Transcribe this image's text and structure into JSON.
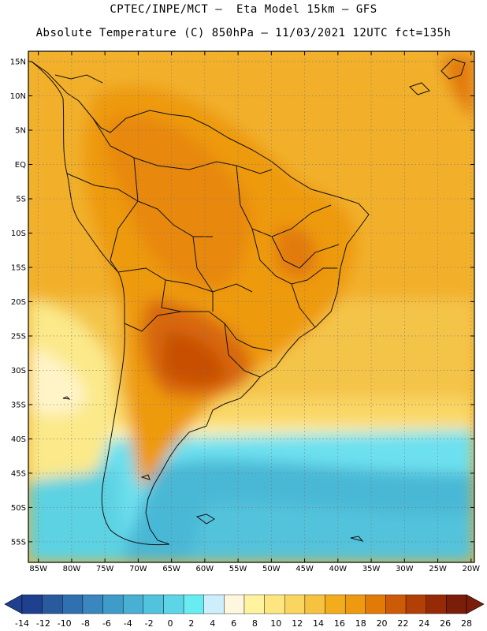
{
  "header": {
    "line1": "CPTEC/INPE/MCT –  Eta Model 15km – GFS",
    "line2": "Absolute Temperature (C) 850hPa – 11/03/2021 12UTC fct=135h"
  },
  "map": {
    "lat_labels": [
      "15N",
      "10N",
      "5N",
      "EQ",
      "5S",
      "10S",
      "15S",
      "20S",
      "25S",
      "30S",
      "35S",
      "40S",
      "45S",
      "50S",
      "55S"
    ],
    "lat_values": [
      15,
      10,
      5,
      0,
      -5,
      -10,
      -15,
      -20,
      -25,
      -30,
      -35,
      -40,
      -45,
      -50,
      -55
    ],
    "lon_labels": [
      "85W",
      "80W",
      "75W",
      "70W",
      "65W",
      "60W",
      "55W",
      "50W",
      "45W",
      "40W",
      "35W",
      "30W",
      "25W",
      "20W"
    ],
    "lon_values": [
      -85,
      -80,
      -75,
      -70,
      -65,
      -60,
      -55,
      -50,
      -45,
      -40,
      -35,
      -30,
      -25,
      -20
    ]
  },
  "colorbar": {
    "levels": [
      -14,
      -12,
      -10,
      -8,
      -6,
      -4,
      -2,
      0,
      2,
      4,
      6,
      8,
      10,
      12,
      14,
      16,
      18,
      20,
      22,
      24,
      26,
      28
    ],
    "labels": [
      "-14",
      "-12",
      "-10",
      "-8",
      "-6",
      "-4",
      "-2",
      "0",
      "2",
      "4",
      "6",
      "8",
      "10",
      "12",
      "14",
      "16",
      "18",
      "20",
      "22",
      "24",
      "26",
      "28"
    ],
    "colors": [
      "#1f3f8f",
      "#2a5a9e",
      "#3070b0",
      "#3a86be",
      "#3f9bc8",
      "#48b0d3",
      "#52c3dc",
      "#5cd6e6",
      "#68ecf2",
      "#cdeefa",
      "#fff6e0",
      "#fff3a0",
      "#fde680",
      "#fad660",
      "#f6c240",
      "#f2ad1c",
      "#ee9a10",
      "#e27a08",
      "#cc5a06",
      "#b24006",
      "#962a06",
      "#7a1e0a"
    ]
  },
  "colors": {
    "frame": "#000000",
    "grid": "#777777",
    "land_border": "#111111"
  }
}
